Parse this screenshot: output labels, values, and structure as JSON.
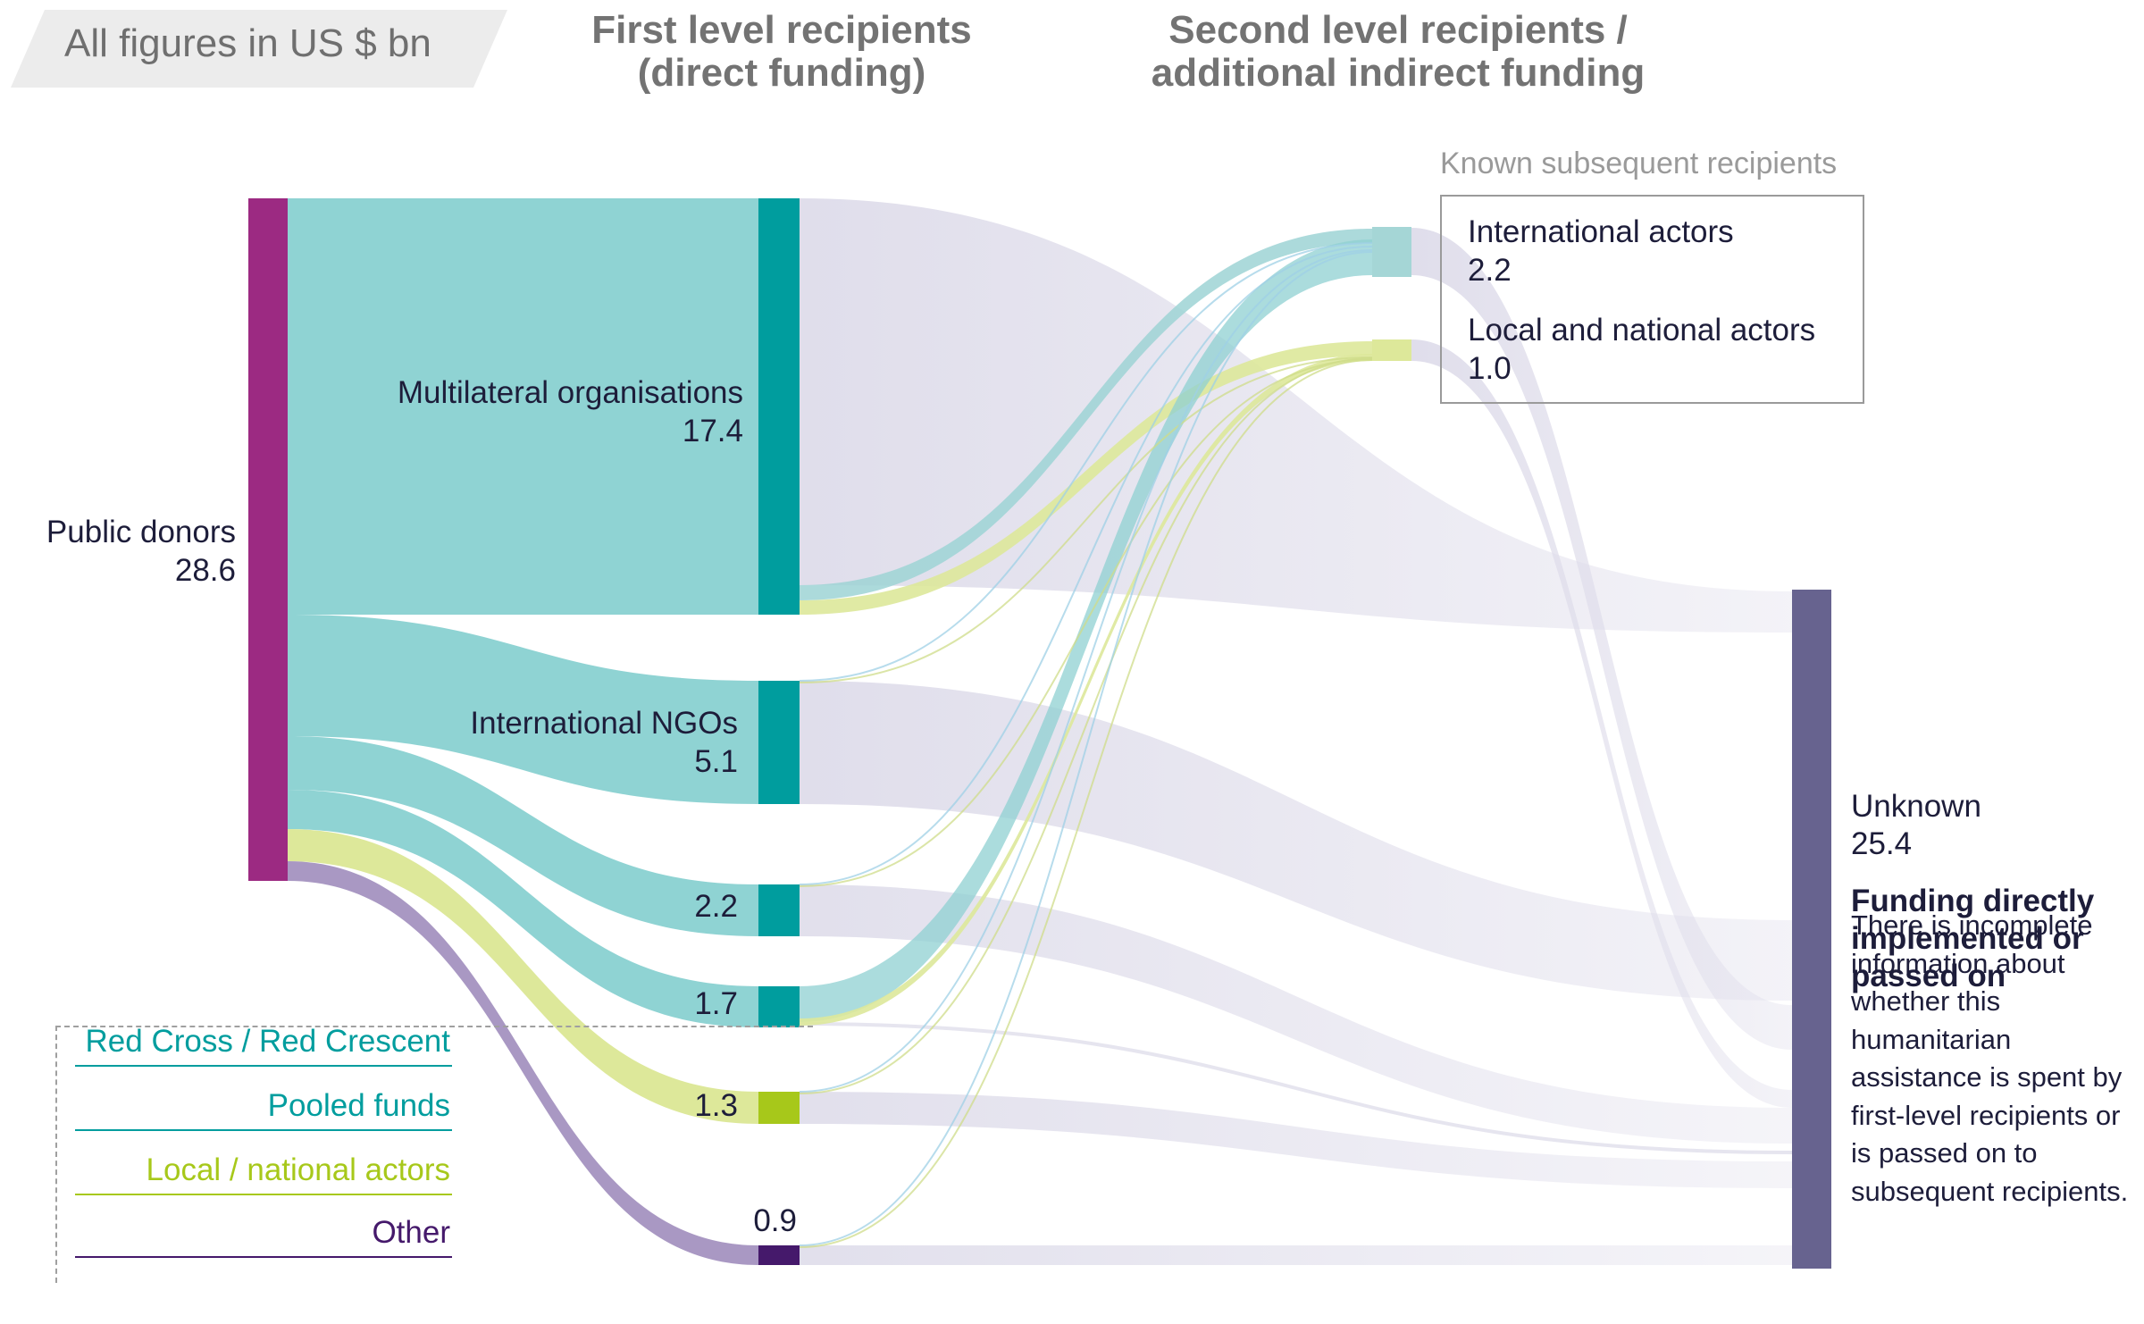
{
  "header": {
    "units_tag": "All figures in US $ bn",
    "col1_title_line1": "First level recipients",
    "col1_title_line2": "(direct funding)",
    "col2_title_line1": "Second level recipients /",
    "col2_title_line2": "additional indirect funding"
  },
  "colors": {
    "donor": "#9c2a82",
    "multilateral": "#009d9e",
    "ingo": "#009d9e",
    "red_cross": "#009d9e",
    "pooled": "#009d9e",
    "local": "#a7c81a",
    "other": "#45196b",
    "unknown": "#67638f",
    "flow_teal": "#8fd3d3",
    "flow_lime": "#dde89a",
    "flow_purple": "#a998c3",
    "flow_grey": "#dedcea",
    "intl_node": "#a5d6d6",
    "local_node": "#dde89a"
  },
  "nodes": {
    "public_donors": {
      "label": "Public donors",
      "value": "28.6"
    },
    "multilateral": {
      "label": "Multilateral organisations",
      "value": "17.4"
    },
    "international_ngos": {
      "label": "International NGOs",
      "value": "5.1"
    },
    "red_cross": {
      "value": "2.2"
    },
    "pooled_funds": {
      "value": "1.7"
    },
    "local_national": {
      "value": "1.3"
    },
    "other": {
      "value": "0.9"
    },
    "known_title": "Known subsequent recipients",
    "international_actors": {
      "label": "International actors",
      "value": "2.2"
    },
    "local_national_actors": {
      "label": "Local and national actors",
      "value": "1.0"
    },
    "unknown": {
      "label": "Unknown",
      "value": "25.4",
      "subtitle": "Funding directly implemented or passed on",
      "note": "There is incomplete information about whether this humanitarian assistance is spent by first-level recipients or is passed on to subsequent recipients."
    }
  },
  "legend": [
    {
      "label": "Red Cross / Red Crescent",
      "color": "#009d9e"
    },
    {
      "label": "Pooled funds",
      "color": "#009d9e"
    },
    {
      "label": "Local / national actors",
      "color": "#a7c81a"
    },
    {
      "label": "Other",
      "color": "#45196b"
    }
  ],
  "chart_data": {
    "type": "sankey",
    "units": "US $ bn",
    "nodes": [
      {
        "id": "donors",
        "name": "Public donors",
        "value": 28.6
      },
      {
        "id": "multi",
        "name": "Multilateral organisations",
        "value": 17.4
      },
      {
        "id": "ingo",
        "name": "International NGOs",
        "value": 5.1
      },
      {
        "id": "rc",
        "name": "Red Cross / Red Crescent",
        "value": 2.2
      },
      {
        "id": "pooled",
        "name": "Pooled funds",
        "value": 1.7
      },
      {
        "id": "local",
        "name": "Local / national actors",
        "value": 1.3
      },
      {
        "id": "other",
        "name": "Other",
        "value": 0.9
      },
      {
        "id": "intl",
        "name": "International actors",
        "value": 2.2
      },
      {
        "id": "lna",
        "name": "Local and national actors",
        "value": 1.0
      },
      {
        "id": "unknown",
        "name": "Unknown",
        "value": 25.4
      }
    ],
    "links": [
      {
        "source": "donors",
        "target": "multi",
        "value": 17.4
      },
      {
        "source": "donors",
        "target": "ingo",
        "value": 5.1
      },
      {
        "source": "donors",
        "target": "rc",
        "value": 2.2
      },
      {
        "source": "donors",
        "target": "pooled",
        "value": 1.7
      },
      {
        "source": "donors",
        "target": "local",
        "value": 1.3
      },
      {
        "source": "donors",
        "target": "other",
        "value": 0.9
      },
      {
        "source": "multi",
        "target": "intl",
        "value": 0.6
      },
      {
        "source": "multi",
        "target": "lna",
        "value": 0.4
      },
      {
        "source": "multi",
        "target": "unknown",
        "value": 16.4
      },
      {
        "source": "ingo",
        "target": "intl",
        "value": 0.05
      },
      {
        "source": "ingo",
        "target": "lna",
        "value": 0.05
      },
      {
        "source": "ingo",
        "target": "unknown",
        "value": 5.0
      },
      {
        "source": "rc",
        "target": "intl",
        "value": 0.05
      },
      {
        "source": "rc",
        "target": "unknown",
        "value": 2.15
      },
      {
        "source": "pooled",
        "target": "intl",
        "value": 1.4
      },
      {
        "source": "pooled",
        "target": "lna",
        "value": 0.2
      },
      {
        "source": "pooled",
        "target": "unknown",
        "value": 0.1
      },
      {
        "source": "local",
        "target": "intl",
        "value": 0.05
      },
      {
        "source": "local",
        "target": "lna",
        "value": 0.05
      },
      {
        "source": "local",
        "target": "unknown",
        "value": 1.2
      },
      {
        "source": "other",
        "target": "intl",
        "value": 0.05
      },
      {
        "source": "other",
        "target": "lna",
        "value": 0.05
      },
      {
        "source": "other",
        "target": "unknown",
        "value": 0.8
      },
      {
        "source": "intl",
        "target": "unknown",
        "value": 2.2
      },
      {
        "source": "lna",
        "target": "unknown",
        "value": 1.0
      }
    ]
  }
}
